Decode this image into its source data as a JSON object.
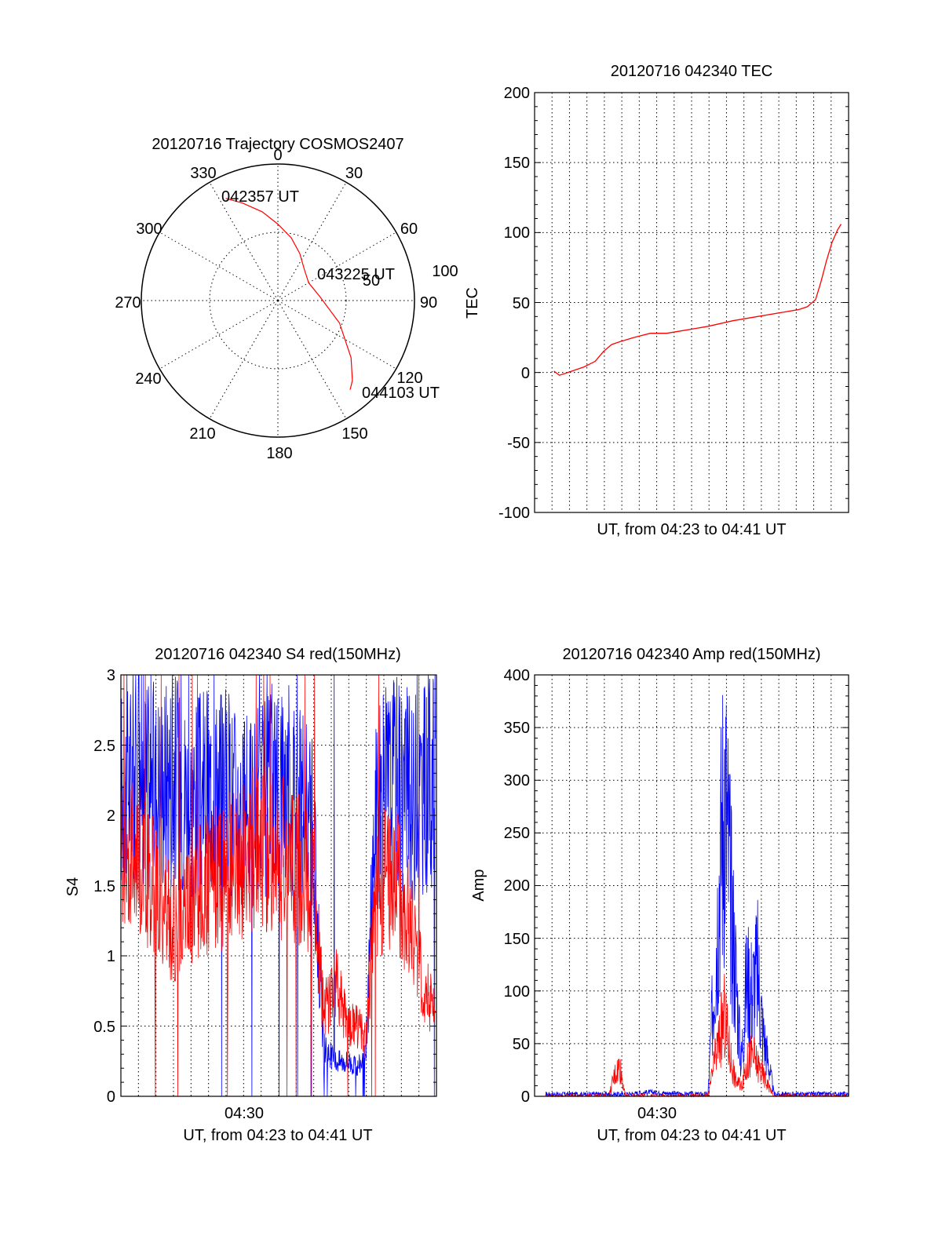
{
  "colors": {
    "red": "#ff0000",
    "blue": "#0000ff",
    "black": "#000000"
  },
  "chart_data": [
    {
      "id": "trajectory",
      "type": "polar",
      "title": "20120716 Trajectory COSMOS2407",
      "azimuth_labels": [
        "0",
        "30",
        "60",
        "90",
        "120",
        "150",
        "180",
        "210",
        "240",
        "270",
        "300",
        "330"
      ],
      "radial_labels": [
        "50",
        "100"
      ],
      "trajectory": {
        "azimuth_deg": [
          333,
          340,
          350,
          0,
          12,
          25,
          40,
          60,
          85,
          110,
          128,
          137,
          141
        ],
        "radius": [
          84,
          76,
          66,
          56,
          47,
          38,
          30,
          26,
          31,
          48,
          68,
          80,
          84
        ]
      },
      "annotations": [
        {
          "text": "042357 UT",
          "azimuth_deg": 333,
          "radius": 84
        },
        {
          "text": "043225 UT",
          "azimuth_deg": 60,
          "radius": 26
        },
        {
          "text": "044103 UT",
          "azimuth_deg": 141,
          "radius": 84
        }
      ]
    },
    {
      "id": "tec",
      "type": "line",
      "title": "20120716 042340 TEC",
      "xlabel": "UT, from 04:23 to 04:41 UT",
      "ylabel": "TEC",
      "xlim": [
        "04:22:30",
        "04:41:30"
      ],
      "ylim": [
        -100,
        200
      ],
      "yticks": [
        "200",
        "150",
        "100",
        "50",
        "0",
        "-50",
        "-100"
      ],
      "series": [
        {
          "color": "red",
          "x": [
            "04:23:40",
            "04:24:00",
            "04:24:30",
            "04:25:30",
            "04:26:10",
            "04:26:40",
            "04:27:10",
            "04:27:40",
            "04:28:30",
            "04:29:30",
            "04:30:30",
            "04:31:30",
            "04:33:00",
            "04:34:30",
            "04:36:00",
            "04:37:30",
            "04:38:30",
            "04:39:00",
            "04:39:30",
            "04:39:50",
            "04:40:10",
            "04:40:30",
            "04:40:50",
            "04:41:03"
          ],
          "y": [
            1,
            -2,
            0,
            4,
            8,
            15,
            20,
            22,
            25,
            28,
            28,
            30,
            33,
            37,
            40,
            43,
            45,
            47,
            52,
            65,
            80,
            93,
            102,
            106
          ]
        }
      ]
    },
    {
      "id": "s4",
      "type": "line",
      "title": "20120716 042340 S4 red(150MHz)",
      "xlabel": "UT, from 04:23 to 04:41 UT",
      "ylabel": "S4",
      "xtick_label": "04:30",
      "xlim": [
        "04:23:40",
        "04:41:03"
      ],
      "ylim": [
        0,
        3
      ],
      "yticks": [
        "3",
        "2.5",
        "2",
        "1.5",
        "1",
        "0.5",
        "0"
      ],
      "series": [
        {
          "color": "blue",
          "x": [
            "04:23:40",
            "04:24:30",
            "04:25:30",
            "04:26:30",
            "04:27:30",
            "04:28:30",
            "04:29:30",
            "04:30:30",
            "04:31:30",
            "04:32:30",
            "04:33:30",
            "04:34:15",
            "04:34:50",
            "04:35:30",
            "04:36:15",
            "04:36:40",
            "04:37:10",
            "04:37:40",
            "04:38:20",
            "04:39:00",
            "04:39:40",
            "04:40:20",
            "04:41:00"
          ],
          "y": [
            2.2,
            2.3,
            2.2,
            2.3,
            2.1,
            2.2,
            2.2,
            2.0,
            2.1,
            2.3,
            2.1,
            1.9,
            0.35,
            0.25,
            0.25,
            0.2,
            0.3,
            2.0,
            2.2,
            2.3,
            2.1,
            2.2,
            2.3
          ]
        },
        {
          "color": "red",
          "x": [
            "04:23:40",
            "04:24:30",
            "04:25:30",
            "04:26:30",
            "04:27:30",
            "04:28:30",
            "04:29:30",
            "04:30:30",
            "04:31:30",
            "04:32:30",
            "04:33:30",
            "04:34:15",
            "04:34:50",
            "04:35:30",
            "04:36:15",
            "04:36:40",
            "04:37:10",
            "04:37:40",
            "04:38:20",
            "04:39:00",
            "04:39:40",
            "04:40:20",
            "04:41:00"
          ],
          "y": [
            1.8,
            1.7,
            1.5,
            1.2,
            1.4,
            1.5,
            1.6,
            1.7,
            1.8,
            1.7,
            1.6,
            1.5,
            0.6,
            0.8,
            0.5,
            0.5,
            0.4,
            1.4,
            1.6,
            1.5,
            1.2,
            0.8,
            0.6
          ]
        }
      ]
    },
    {
      "id": "amp",
      "type": "line",
      "title": "20120716 042340 Amp red(150MHz)",
      "xlabel": "UT, from 04:23 to 04:41 UT",
      "ylabel": "Amp",
      "xtick_label": "04:30",
      "xlim": [
        "04:22:30",
        "04:41:30"
      ],
      "ylim": [
        0,
        400
      ],
      "yticks": [
        "400",
        "350",
        "300",
        "250",
        "200",
        "150",
        "100",
        "50",
        "0"
      ],
      "series": [
        {
          "color": "blue",
          "x": [
            "04:23:10",
            "04:28:00",
            "04:29:30",
            "04:31:30",
            "04:33:00",
            "04:33:30",
            "04:34:00",
            "04:34:20",
            "04:34:40",
            "04:35:00",
            "04:35:20",
            "04:35:40",
            "04:36:00",
            "04:36:20",
            "04:37:00",
            "04:40:00",
            "04:41:30"
          ],
          "y": [
            2,
            2,
            4,
            2,
            2,
            150,
            300,
            200,
            120,
            30,
            110,
            100,
            120,
            60,
            2,
            2,
            2
          ]
        },
        {
          "color": "red",
          "x": [
            "04:23:10",
            "04:27:00",
            "04:27:20",
            "04:27:40",
            "04:28:00",
            "04:33:00",
            "04:33:30",
            "04:34:00",
            "04:34:20",
            "04:34:40",
            "04:35:00",
            "04:35:20",
            "04:35:40",
            "04:36:00",
            "04:36:20",
            "04:37:00",
            "04:41:30"
          ],
          "y": [
            0,
            0,
            20,
            30,
            0,
            0,
            40,
            75,
            40,
            15,
            10,
            30,
            40,
            30,
            20,
            0,
            0
          ]
        }
      ]
    }
  ]
}
